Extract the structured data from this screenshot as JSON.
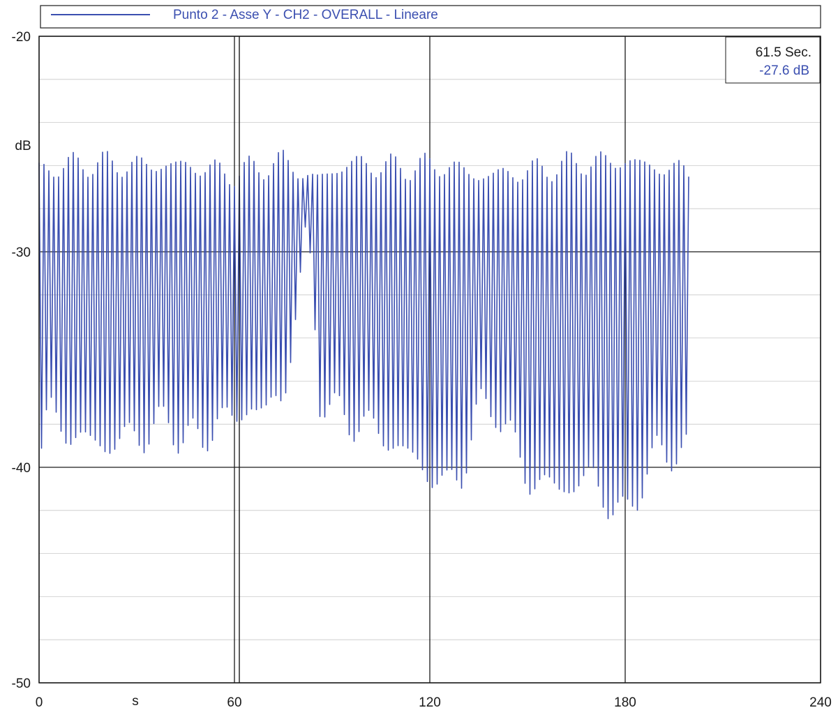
{
  "chart_data": {
    "type": "line",
    "legend": {
      "placement": "top",
      "entries": [
        {
          "label": "Punto 2 - Asse Y - CH2 - OVERALL - Lineare",
          "color": "#3b4fb0"
        }
      ]
    },
    "xlabel": "s",
    "ylabel": "dB",
    "xlim": [
      0,
      240
    ],
    "ylim": [
      -50,
      -20
    ],
    "x_ticks": [
      0,
      60,
      120,
      180,
      240
    ],
    "x_tick_labels": [
      "0",
      "60",
      "120",
      "180",
      "240"
    ],
    "y_ticks": [
      -20,
      -30,
      -40,
      -50
    ],
    "y_tick_labels": [
      "-20",
      "-30",
      "-40",
      "-50"
    ],
    "major_grid": true,
    "minor_grid_y": true,
    "minor_grid_y_step": 2,
    "cursor": {
      "x": 61.5,
      "readout_time": "61.5 Sec.",
      "readout_value": "-27.6 dB",
      "readout_placement": "top-right"
    },
    "series": [
      {
        "name": "Punto 2 - Asse Y - CH2 - OVERALL - Lineare",
        "color": "#3b4fb0",
        "x_range": [
          0,
          199.5
        ],
        "x_step": 0.75,
        "oscillation_period": 1.5,
        "peaks": {
          "x": [
            0,
            15,
            30,
            45,
            60,
            75,
            85,
            95,
            110,
            125,
            135,
            150,
            165,
            180,
            190,
            199.5
          ],
          "y": [
            -26.2,
            -25.9,
            -26.0,
            -26.0,
            -26.4,
            -25.8,
            -26.7,
            -25.9,
            -26.1,
            -26.0,
            -26.5,
            -26.3,
            -25.9,
            -25.8,
            -26.1,
            -26.3
          ]
        },
        "troughs": {
          "x": [
            0,
            3,
            10,
            20,
            30,
            40,
            50,
            55,
            60,
            65,
            70,
            75,
            80,
            82,
            84,
            86,
            90,
            100,
            110,
            118,
            125,
            130,
            135,
            140,
            150,
            160,
            170,
            177,
            180,
            185,
            190,
            199.5
          ],
          "y": [
            -39.5,
            -37.5,
            -38.5,
            -39.0,
            -38.5,
            -38.0,
            -39.0,
            -37.5,
            -38.0,
            -37.0,
            -37.5,
            -36.5,
            -32.0,
            -29.5,
            -31.0,
            -36.5,
            -37.5,
            -38.0,
            -39.0,
            -40.0,
            -41.0,
            -40.0,
            -37.5,
            -37.0,
            -40.5,
            -41.0,
            -40.5,
            -42.0,
            -42.5,
            -40.5,
            -39.5,
            -39.0
          ]
        }
      }
    ]
  }
}
